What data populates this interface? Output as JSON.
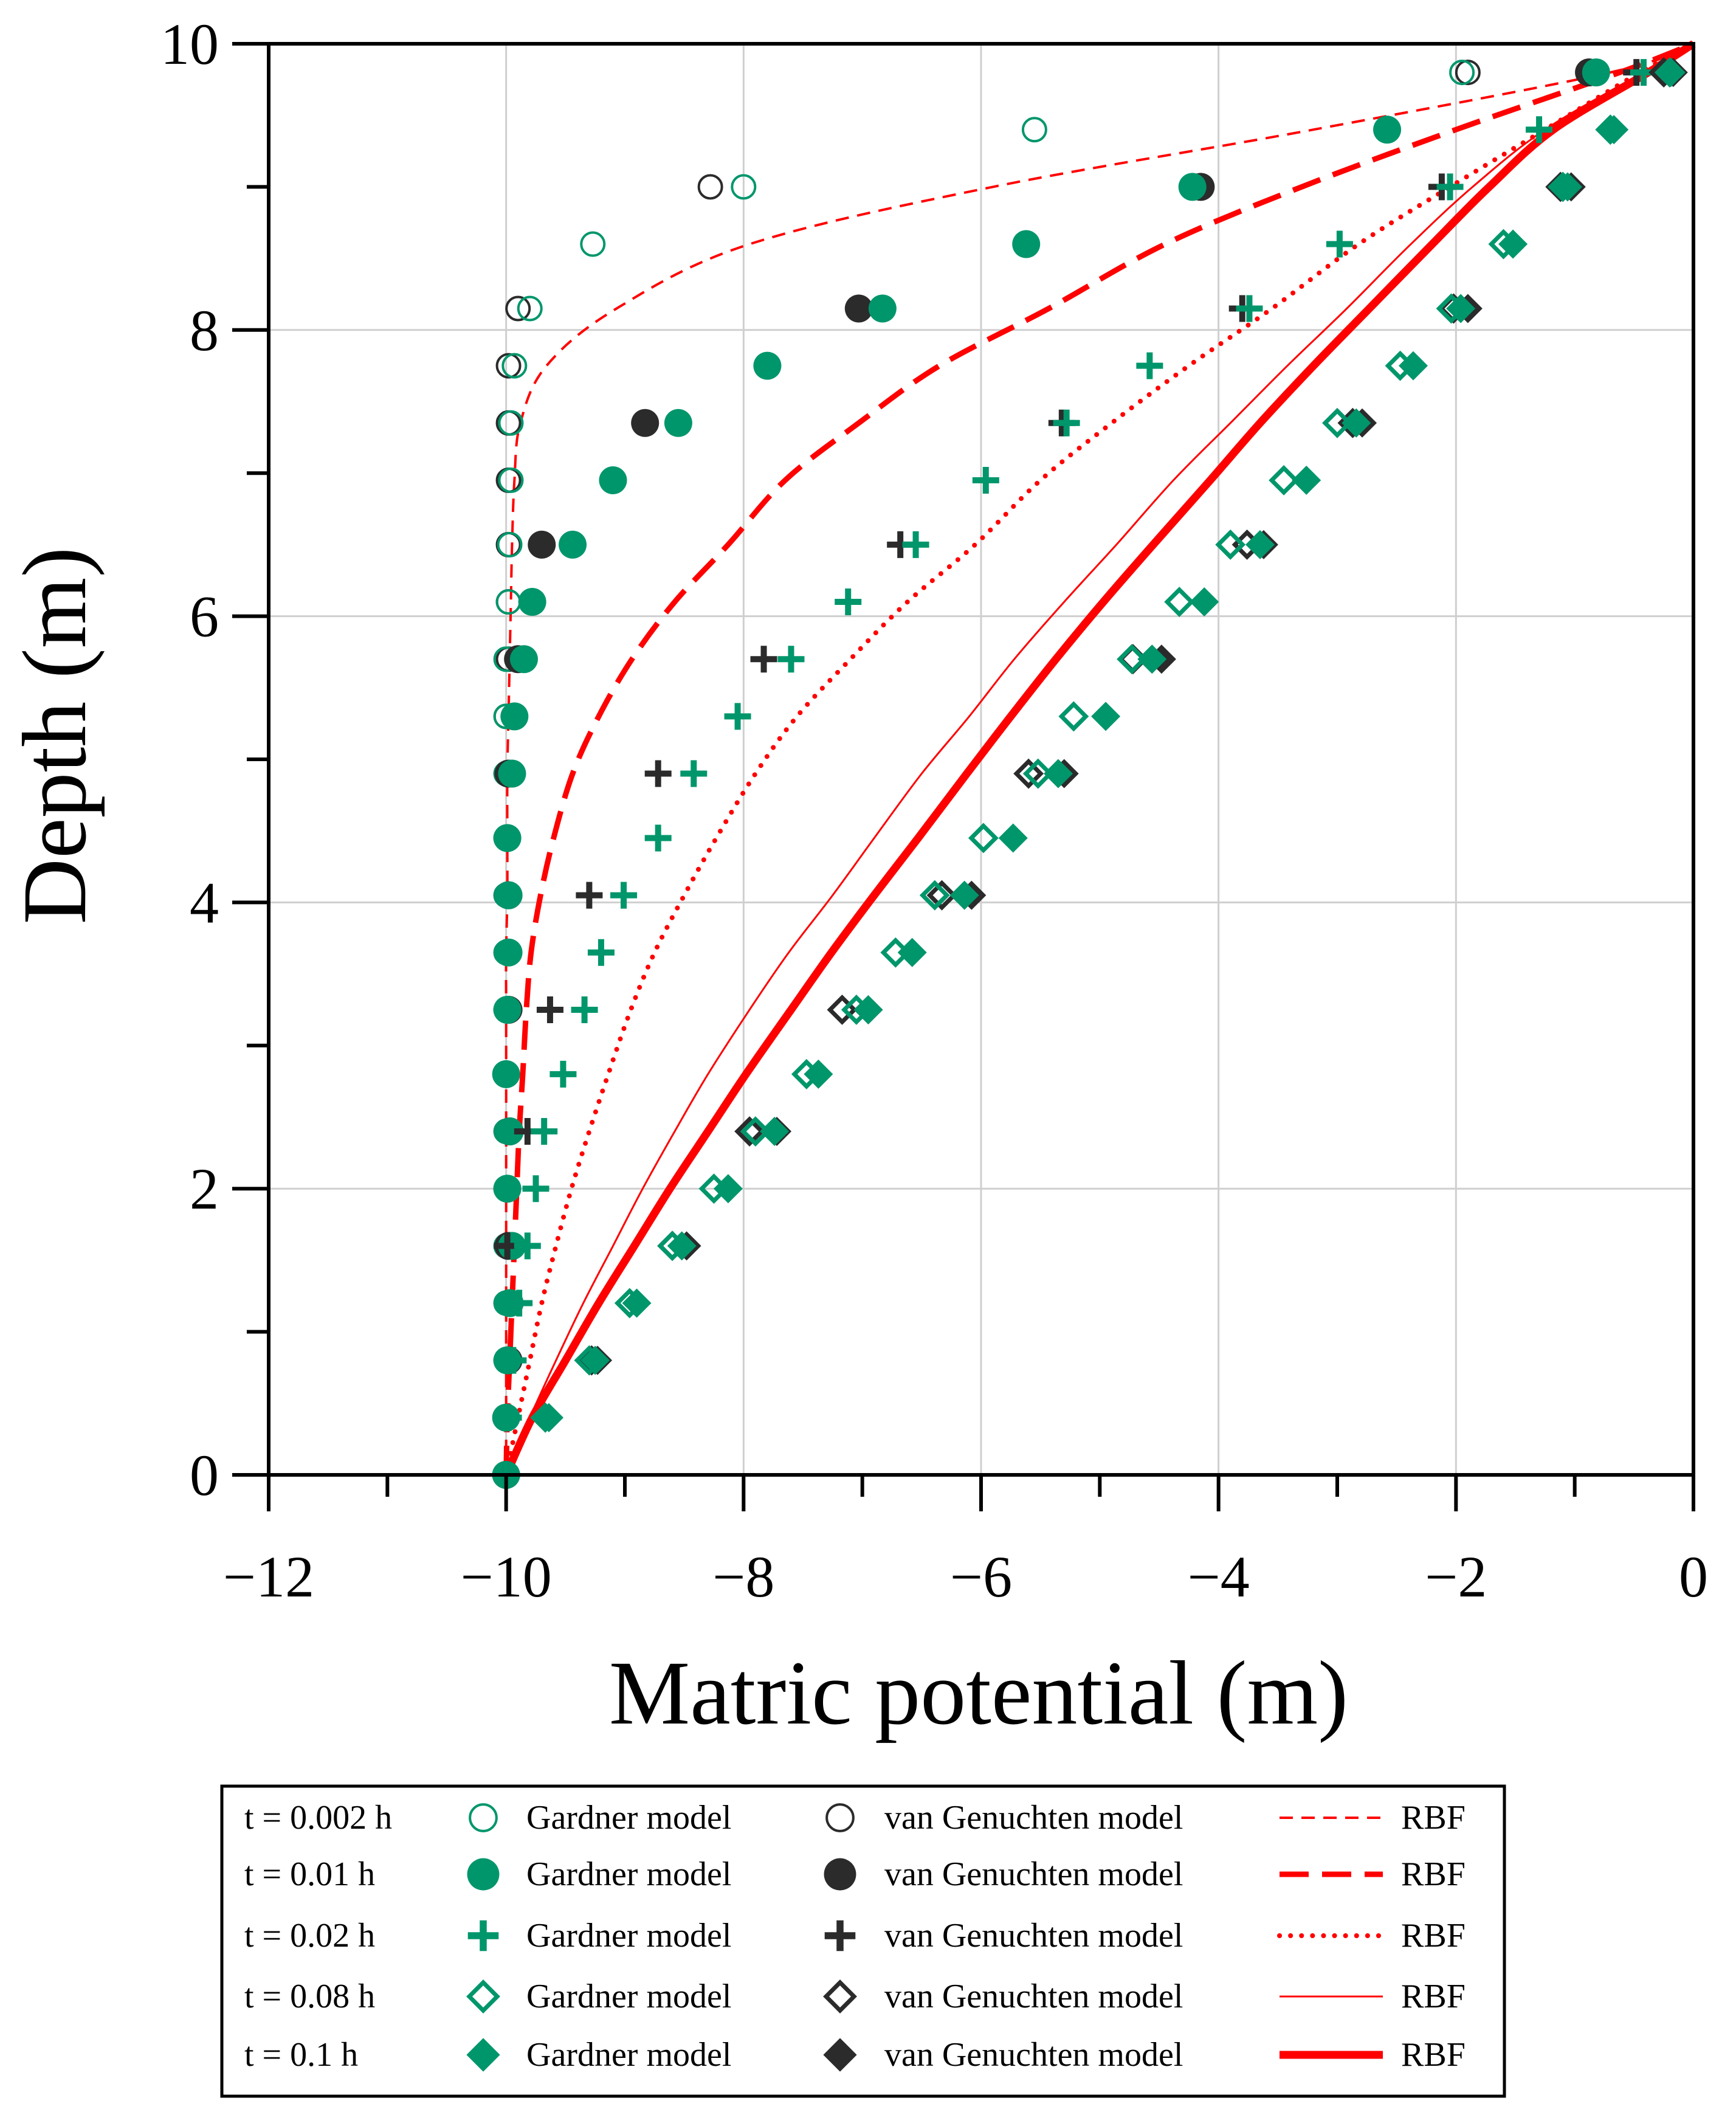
{
  "chart_data": {
    "type": "scatter",
    "title": "",
    "xlabel": "Matric potential (m)",
    "ylabel": "Depth (m)",
    "xlim": [
      -12,
      0
    ],
    "ylim": [
      0,
      10
    ],
    "x_ticks": [
      -12,
      -10,
      -8,
      -6,
      -4,
      -2,
      0
    ],
    "x_tick_labels": [
      "−12",
      "−10",
      "−8",
      "−6",
      "−4",
      "−2",
      "0"
    ],
    "y_ticks": [
      0,
      2,
      4,
      6,
      8,
      10
    ],
    "y_tick_labels": [
      "0",
      "2",
      "4",
      "6",
      "8",
      "10"
    ],
    "grid": true,
    "legend_position": "bottom",
    "colors": {
      "gardner": "#00966b",
      "van_genuchten": "#2b2b2b",
      "rbf": "#ff0000"
    },
    "depths": [
      0,
      0.4,
      0.8,
      1.2,
      1.6,
      2.0,
      2.4,
      2.8,
      3.25,
      3.65,
      4.05,
      4.45,
      4.9,
      5.3,
      5.7,
      6.1,
      6.5,
      6.95,
      7.35,
      7.75,
      8.15,
      8.6,
      9.0,
      9.4,
      9.8
    ],
    "times": [
      {
        "label": "t = 0.002 h",
        "marker_open": true,
        "marker_shape": "circle",
        "rbf_style": "thin-dashed",
        "gardner": [
          -10,
          -10,
          -10,
          -10,
          -10,
          -10,
          -10,
          -10,
          -10,
          -10,
          -10,
          -10,
          -10,
          -10,
          -10,
          -9.98,
          -9.97,
          -9.96,
          -9.96,
          -9.93,
          -9.8,
          -9.27,
          -8.0,
          -5.55,
          -1.95
        ],
        "van_genuchten": [
          -10,
          -10,
          -10,
          -10,
          -10,
          -10,
          -10,
          -10,
          -10,
          -10,
          -10,
          -10,
          -10,
          -10,
          -9.98,
          -9.98,
          -9.98,
          -9.98,
          -9.98,
          -9.98,
          -9.9,
          null,
          -8.28,
          null,
          -1.9
        ],
        "rbf": [
          -10,
          -10,
          -10,
          -10,
          -10,
          -10,
          -10,
          -10,
          -10,
          -10,
          -9.99,
          -9.99,
          -9.99,
          -9.98,
          -9.97,
          -9.96,
          -9.95,
          -9.93,
          -9.88,
          -9.66,
          -9.07,
          -7.95,
          -5.9,
          -3.2,
          -0.7
        ]
      },
      {
        "label": "t = 0.01 h",
        "marker_open": false,
        "marker_shape": "circle",
        "rbf_style": "thick-dashed",
        "gardner": [
          -10,
          -10,
          -9.99,
          -9.97,
          -9.95,
          -9.99,
          -9.97,
          -10,
          -9.99,
          -9.98,
          -9.98,
          -9.99,
          -9.95,
          -9.93,
          -9.85,
          -9.78,
          -9.44,
          -9.1,
          -8.55,
          -7.8,
          -6.83,
          -5.62,
          -4.22,
          -2.58,
          -0.82
        ],
        "van_genuchten": [
          -10,
          null,
          -9.98,
          null,
          -9.98,
          null,
          -9.97,
          null,
          -9.98,
          null,
          -9.98,
          null,
          -9.98,
          null,
          -9.9,
          null,
          -9.7,
          null,
          -8.83,
          null,
          -7.03,
          null,
          -4.15,
          null,
          -0.88
        ],
        "rbf": [
          -10,
          -9.99,
          -9.97,
          -9.95,
          -9.93,
          -9.91,
          -9.89,
          -9.86,
          -9.83,
          -9.79,
          -9.71,
          -9.6,
          -9.44,
          -9.22,
          -8.94,
          -8.58,
          -8.13,
          -7.65,
          -7.03,
          -6.35,
          -5.43,
          -4.45,
          -3.3,
          -2.0,
          -0.62
        ]
      },
      {
        "label": "t = 0.02 h",
        "marker_open": false,
        "marker_shape": "plus",
        "rbf_style": "dotted",
        "gardner": [
          -10,
          -9.98,
          -9.94,
          -9.89,
          -9.82,
          -9.75,
          -9.68,
          -9.52,
          -9.34,
          -9.2,
          -9.01,
          -8.72,
          -8.42,
          -8.05,
          -7.6,
          -7.12,
          -6.55,
          -5.96,
          -5.28,
          -4.58,
          -3.74,
          -2.98,
          -2.05,
          -1.3,
          -0.42
        ],
        "van_genuchten": [
          -10,
          null,
          null,
          null,
          -9.99,
          null,
          -9.82,
          null,
          -9.63,
          null,
          -9.3,
          null,
          -8.72,
          null,
          -7.83,
          null,
          -6.68,
          null,
          -5.32,
          null,
          -3.8,
          null,
          -2.12,
          null,
          -0.48
        ],
        "rbf": [
          -10,
          -9.9,
          -9.8,
          -9.7,
          -9.58,
          -9.45,
          -9.3,
          -9.14,
          -8.95,
          -8.75,
          -8.5,
          -8.23,
          -7.9,
          -7.55,
          -7.1,
          -6.62,
          -6.05,
          -5.5,
          -4.9,
          -4.25,
          -3.55,
          -2.82,
          -2.05,
          -1.25,
          -0.45
        ]
      },
      {
        "label": "t = 0.08 h",
        "marker_open": true,
        "marker_shape": "diamond",
        "rbf_style": "thin-solid",
        "gardner": [
          null,
          -9.67,
          -9.3,
          -8.96,
          -8.6,
          -8.25,
          -7.9,
          -7.47,
          -7.05,
          -6.72,
          -6.39,
          -5.98,
          -5.52,
          -5.22,
          -4.73,
          -4.33,
          -3.9,
          -3.45,
          -3.0,
          -2.47,
          -2.04,
          -1.6,
          -1.1,
          -0.7,
          -0.2
        ],
        "van_genuchten": [
          null,
          null,
          -9.28,
          null,
          -8.6,
          null,
          -7.95,
          null,
          -7.17,
          null,
          -6.33,
          null,
          -5.6,
          null,
          -4.72,
          null,
          -3.76,
          null,
          -2.87,
          null,
          -2.02,
          null,
          -1.12,
          null,
          -0.25
        ],
        "rbf": [
          -10,
          -9.8,
          -9.58,
          -9.35,
          -9.1,
          -8.85,
          -8.58,
          -8.3,
          -7.95,
          -7.62,
          -7.25,
          -6.9,
          -6.5,
          -6.1,
          -5.72,
          -5.3,
          -4.86,
          -4.38,
          -3.9,
          -3.42,
          -2.92,
          -2.38,
          -1.86,
          -1.25,
          -0.42
        ]
      },
      {
        "label": "t = 0.1 h",
        "marker_open": false,
        "marker_shape": "diamond",
        "rbf_style": "thick-solid",
        "gardner": [
          null,
          -9.64,
          -9.25,
          -8.9,
          -8.52,
          -8.13,
          -7.74,
          -7.37,
          -6.95,
          -6.58,
          -6.14,
          -5.73,
          -5.35,
          -4.95,
          -4.56,
          -4.12,
          -3.65,
          -3.26,
          -2.84,
          -2.36,
          -1.96,
          -1.52,
          -1.06,
          -0.67,
          -0.19
        ],
        "van_genuchten": [
          null,
          null,
          -9.23,
          null,
          -8.48,
          null,
          -7.72,
          null,
          -6.95,
          null,
          -6.08,
          null,
          -5.3,
          null,
          -4.48,
          null,
          -3.62,
          null,
          -2.79,
          null,
          -1.9,
          null,
          -1.03,
          null,
          -0.17
        ],
        "rbf": [
          -10,
          -9.78,
          -9.5,
          -9.22,
          -8.92,
          -8.62,
          -8.3,
          -7.98,
          -7.6,
          -7.26,
          -6.9,
          -6.53,
          -6.12,
          -5.75,
          -5.37,
          -4.97,
          -4.55,
          -4.07,
          -3.65,
          -3.2,
          -2.73,
          -2.2,
          -1.72,
          -1.18,
          -0.38
        ]
      }
    ]
  },
  "legend": {
    "gardner_label": "Gardner model",
    "vg_label": "van Genuchten model",
    "rbf_label": "RBF"
  }
}
